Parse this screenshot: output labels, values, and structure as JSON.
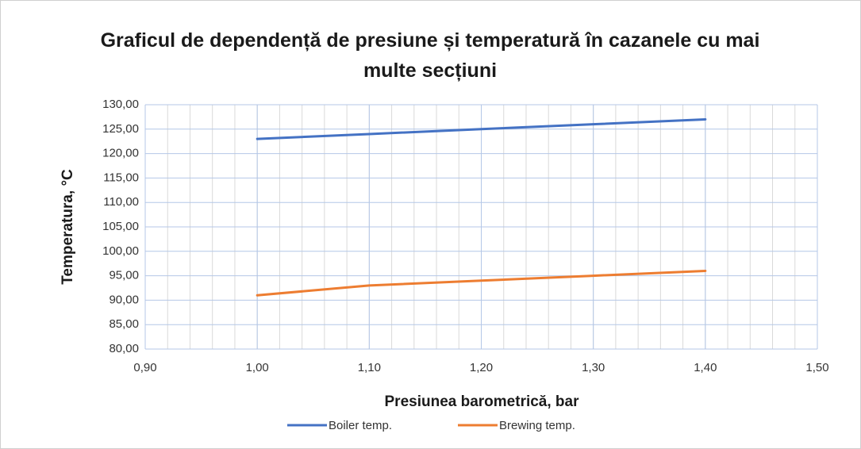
{
  "chart_data": {
    "type": "line",
    "title": "Graficul de dependență de presiune și temperatură în cazanele cu mai multe secțiuni",
    "x_label": "Presiunea barometrică, bar",
    "y_label": "Temperatura, °C",
    "x": [
      1.0,
      1.1,
      1.2,
      1.3,
      1.4
    ],
    "series": [
      {
        "name": "Boiler temp.",
        "color": "#4472c4",
        "values": [
          123,
          124,
          125,
          126,
          127
        ]
      },
      {
        "name": "Brewing temp.",
        "color": "#ed7d31",
        "values": [
          91,
          93,
          94,
          95,
          96
        ]
      }
    ],
    "xlim": [
      0.9,
      1.5
    ],
    "xticks": [
      {
        "value": 0.9,
        "label": "0,90"
      },
      {
        "value": 1.0,
        "label": "1,00"
      },
      {
        "value": 1.1,
        "label": "1,10"
      },
      {
        "value": 1.2,
        "label": "1,20"
      },
      {
        "value": 1.3,
        "label": "1,30"
      },
      {
        "value": 1.4,
        "label": "1,40"
      },
      {
        "value": 1.5,
        "label": "1,50"
      }
    ],
    "ylim": [
      80,
      130
    ],
    "yticks": [
      {
        "value": 80,
        "label": "80,00"
      },
      {
        "value": 85,
        "label": "85,00"
      },
      {
        "value": 90,
        "label": "90,00"
      },
      {
        "value": 95,
        "label": "95,00"
      },
      {
        "value": 100,
        "label": "100,00"
      },
      {
        "value": 105,
        "label": "105,00"
      },
      {
        "value": 110,
        "label": "110,00"
      },
      {
        "value": 115,
        "label": "115,00"
      },
      {
        "value": 120,
        "label": "120,00"
      },
      {
        "value": 125,
        "label": "125,00"
      },
      {
        "value": 130,
        "label": "130,00"
      }
    ],
    "x_minor_grid": 0.02,
    "grid": true,
    "legend": "bottom"
  }
}
